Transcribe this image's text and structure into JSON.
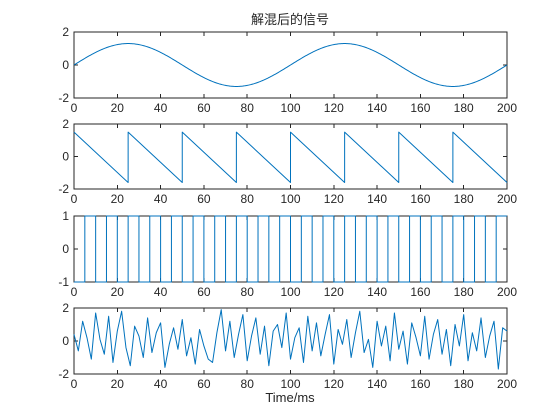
{
  "chart_data": {
    "type": "line",
    "title": "解混后的信号",
    "xlabel": "Time/ms",
    "color": "#0072BD",
    "subplots": [
      {
        "series": [
          {
            "kind": "sine",
            "x": [
              0,
              25,
              50,
              75,
              100,
              125,
              150,
              175,
              200
            ],
            "values": [
              0,
              1.3,
              0,
              -1.3,
              0,
              1.3,
              0,
              -1.3,
              0
            ]
          }
        ],
        "xlim": [
          0,
          200
        ],
        "ylim": [
          -2,
          2
        ],
        "xticks": [
          "0",
          "20",
          "40",
          "60",
          "80",
          "100",
          "120",
          "140",
          "160",
          "180",
          "200"
        ],
        "yticks": [
          "-2",
          "0",
          "2"
        ]
      },
      {
        "series": [
          {
            "kind": "sawtooth",
            "x": [
              0,
              25,
              25,
              50,
              50,
              75,
              75,
              100,
              100,
              125,
              125,
              150,
              150,
              175,
              175,
              200
            ],
            "values": [
              1.5,
              -1.6,
              1.5,
              -1.6,
              1.5,
              -1.6,
              1.5,
              -1.6,
              1.5,
              -1.6,
              1.5,
              -1.6,
              1.5,
              -1.6,
              1.5,
              -1.6
            ]
          }
        ],
        "xlim": [
          0,
          200
        ],
        "ylim": [
          -2,
          2
        ],
        "xticks": [
          "0",
          "20",
          "40",
          "60",
          "80",
          "100",
          "120",
          "140",
          "160",
          "180",
          "200"
        ],
        "yticks": [
          "-2",
          "0",
          "2"
        ]
      },
      {
        "series": [
          {
            "kind": "square",
            "x": [
              0,
              5,
              5,
              10,
              10,
              15,
              15,
              20,
              20,
              25,
              25,
              30,
              30,
              35,
              35,
              40,
              40,
              45,
              45,
              50,
              50,
              55,
              55,
              60,
              60,
              65,
              65,
              70,
              70,
              75,
              75,
              80,
              80,
              85,
              85,
              90,
              90,
              95,
              95,
              100,
              100,
              105,
              105,
              110,
              110,
              115,
              115,
              120,
              120,
              125,
              125,
              130,
              130,
              135,
              135,
              140,
              140,
              145,
              145,
              150,
              150,
              155,
              155,
              160,
              160,
              165,
              165,
              170,
              170,
              175,
              175,
              180,
              180,
              185,
              185,
              190,
              190,
              195,
              195,
              200
            ],
            "values": [
              -1,
              -1,
              1,
              1,
              -1,
              -1,
              1,
              1,
              -1,
              -1,
              1,
              1,
              -1,
              -1,
              1,
              1,
              -1,
              -1,
              1,
              1,
              -1,
              -1,
              1,
              1,
              -1,
              -1,
              1,
              1,
              -1,
              -1,
              1,
              1,
              -1,
              -1,
              1,
              1,
              -1,
              -1,
              1,
              1,
              -1,
              -1,
              1,
              1,
              -1,
              -1,
              1,
              1,
              -1,
              -1,
              1,
              1,
              -1,
              -1,
              1,
              1,
              -1,
              -1,
              1,
              1,
              -1,
              -1,
              1,
              1,
              -1,
              -1,
              1,
              1,
              -1,
              -1,
              1,
              1,
              -1,
              -1,
              1,
              1,
              -1,
              -1,
              1,
              1
            ]
          }
        ],
        "xlim": [
          0,
          200
        ],
        "ylim": [
          -1,
          1
        ],
        "xticks": [
          "0",
          "20",
          "40",
          "60",
          "80",
          "100",
          "120",
          "140",
          "160",
          "180",
          "200"
        ],
        "yticks": [
          "-1",
          "0",
          "1"
        ]
      },
      {
        "series": [
          {
            "kind": "noise",
            "x": [
              0,
              2,
              4,
              6,
              8,
              10,
              12,
              14,
              16,
              18,
              20,
              22,
              24,
              26,
              28,
              30,
              32,
              34,
              36,
              38,
              40,
              42,
              44,
              46,
              48,
              50,
              52,
              54,
              56,
              58,
              60,
              62,
              64,
              66,
              68,
              70,
              72,
              74,
              76,
              78,
              80,
              82,
              84,
              86,
              88,
              90,
              92,
              94,
              96,
              98,
              100,
              102,
              104,
              106,
              108,
              110,
              112,
              114,
              116,
              118,
              120,
              122,
              124,
              126,
              128,
              130,
              132,
              134,
              136,
              138,
              140,
              142,
              144,
              146,
              148,
              150,
              152,
              154,
              156,
              158,
              160,
              162,
              164,
              166,
              168,
              170,
              172,
              174,
              176,
              178,
              180,
              182,
              184,
              186,
              188,
              190,
              192,
              194,
              196,
              198,
              200
            ],
            "values": [
              0.4,
              -0.6,
              1.2,
              0.2,
              -1.1,
              1.7,
              0.1,
              -0.8,
              1.5,
              -1.3,
              0.6,
              1.8,
              -0.4,
              -1.5,
              0.9,
              0.3,
              -1.0,
              1.4,
              -0.7,
              0.5,
              1.1,
              -1.6,
              -0.2,
              0.8,
              -0.5,
              1.3,
              -0.9,
              0.2,
              -1.4,
              0.7,
              -0.3,
              -1.1,
              -1.3,
              0.5,
              1.9,
              -0.6,
              1.2,
              -1.0,
              0.4,
              1.6,
              -1.2,
              0.3,
              1.4,
              -0.8,
              0.9,
              -1.5,
              0.6,
              1.0,
              -0.4,
              1.7,
              -1.1,
              0.2,
              0.8,
              -1.3,
              1.5,
              -0.6,
              1.1,
              -0.9,
              0.4,
              1.6,
              -1.4,
              0.7,
              -0.2,
              1.3,
              -1.0,
              0.5,
              1.8,
              -0.7,
              0.1,
              -1.6,
              1.2,
              -0.3,
              0.9,
              -1.2,
              1.7,
              -0.5,
              0.6,
              -1.4,
              1.1,
              0.2,
              -0.9,
              1.5,
              -1.1,
              0.4,
              1.3,
              -0.8,
              0.7,
              -1.5,
              1.0,
              -0.3,
              1.6,
              -1.2,
              0.5,
              -0.6,
              1.4,
              -1.0,
              0.3,
              1.2,
              -1.7,
              0.8,
              0.6
            ]
          }
        ],
        "xlim": [
          0,
          200
        ],
        "ylim": [
          -2,
          2
        ],
        "xticks": [
          "0",
          "20",
          "40",
          "60",
          "80",
          "100",
          "120",
          "140",
          "160",
          "180",
          "200"
        ],
        "yticks": [
          "-2",
          "0",
          "2"
        ]
      }
    ]
  }
}
